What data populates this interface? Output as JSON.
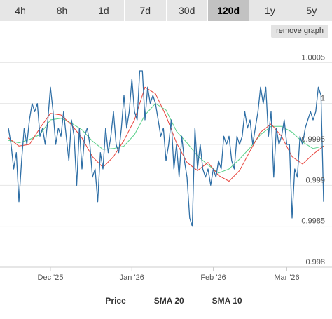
{
  "tabs": [
    {
      "label": "4h"
    },
    {
      "label": "8h"
    },
    {
      "label": "1d"
    },
    {
      "label": "7d"
    },
    {
      "label": "30d"
    },
    {
      "label": "120d",
      "active": true
    },
    {
      "label": "1y"
    },
    {
      "label": "5y"
    }
  ],
  "remove_graph_label": "remove graph",
  "colors": {
    "price": "#2f6fa6",
    "sma20": "#58d089",
    "sma10": "#e8423b"
  },
  "chart_data": {
    "type": "line",
    "title": "",
    "xlabel": "",
    "ylabel": "",
    "ylim": [
      0.998,
      1.0007
    ],
    "y_ticks": [
      {
        "value": 0.998,
        "label": "0.998"
      },
      {
        "value": 0.9985,
        "label": "0.9985"
      },
      {
        "value": 0.999,
        "label": "0.999"
      },
      {
        "value": 0.9995,
        "label": "0.9995"
      },
      {
        "value": 1.0,
        "label": "1"
      },
      {
        "value": 1.0005,
        "label": "1.0005"
      }
    ],
    "x_ticks": [
      {
        "x": 16,
        "label": "Dec '25"
      },
      {
        "x": 47,
        "label": "Jan '26"
      },
      {
        "x": 78,
        "label": "Feb '26"
      },
      {
        "x": 106,
        "label": "Mar '26"
      }
    ],
    "grid": true,
    "legend": "bottom",
    "series": [
      {
        "name": "Price",
        "x": [
          0,
          1,
          2,
          3,
          4,
          5,
          6,
          7,
          8,
          9,
          10,
          11,
          12,
          13,
          14,
          15,
          16,
          17,
          18,
          19,
          20,
          21,
          22,
          23,
          24,
          25,
          26,
          27,
          28,
          29,
          30,
          31,
          32,
          33,
          34,
          35,
          36,
          37,
          38,
          39,
          40,
          41,
          42,
          43,
          44,
          45,
          46,
          47,
          48,
          49,
          50,
          51,
          52,
          53,
          54,
          55,
          56,
          57,
          58,
          59,
          60,
          61,
          62,
          63,
          64,
          65,
          66,
          67,
          68,
          69,
          70,
          71,
          72,
          73,
          74,
          75,
          76,
          77,
          78,
          79,
          80,
          81,
          82,
          83,
          84,
          85,
          86,
          87,
          88,
          89,
          90,
          91,
          92,
          93,
          94,
          95,
          96,
          97,
          98,
          99,
          100,
          101,
          102,
          103,
          104,
          105,
          106,
          107,
          108,
          109,
          110,
          111,
          112,
          113,
          114,
          115,
          116,
          117,
          118,
          119,
          120
        ],
        "values": [
          0.9997,
          0.9995,
          0.9992,
          0.9994,
          0.9988,
          0.9993,
          0.9997,
          0.9995,
          0.9998,
          1.0,
          0.9999,
          1.0,
          0.9996,
          0.9997,
          0.9995,
          0.9998,
          1.0002,
          0.9999,
          0.9995,
          0.9997,
          0.9996,
          0.9999,
          0.9996,
          0.9993,
          0.9998,
          0.9996,
          0.999,
          0.9997,
          0.9992,
          0.9996,
          0.9997,
          0.9995,
          0.9991,
          0.9992,
          0.9988,
          0.9994,
          0.9992,
          0.9997,
          0.9994,
          0.9996,
          0.9999,
          0.9995,
          0.9994,
          0.9997,
          1.0001,
          0.9997,
          0.9999,
          1.0003,
          0.9999,
          0.9998,
          1.0004,
          1.0004,
          0.9998,
          1.0002,
          1.0,
          1.0001,
          1.0,
          0.9998,
          0.9996,
          0.9997,
          0.9993,
          0.9995,
          0.9998,
          0.9992,
          0.9995,
          0.9991,
          0.9996,
          0.9993,
          0.9991,
          0.9986,
          0.9985,
          0.9997,
          0.9992,
          0.9995,
          0.9992,
          0.9991,
          0.9992,
          0.999,
          0.9992,
          0.9991,
          0.9993,
          0.9992,
          0.9996,
          0.9995,
          0.9996,
          0.9993,
          0.9992,
          0.9996,
          0.9995,
          0.9996,
          0.9999,
          0.9997,
          0.9998,
          0.9995,
          0.9997,
          0.9999,
          1.0002,
          1.0,
          1.0002,
          0.9996,
          0.9999,
          0.9991,
          0.9997,
          0.9995,
          0.9996,
          0.9998,
          0.9995,
          0.9995,
          0.9986,
          0.9992,
          0.9991,
          0.9996,
          0.9995,
          0.9997,
          0.9998,
          0.9999,
          0.9998,
          0.9999,
          1.0002,
          1.0001,
          0.9988
        ]
      },
      {
        "name": "SMA 20",
        "x": [
          0,
          4,
          8,
          12,
          16,
          20,
          24,
          28,
          32,
          36,
          40,
          44,
          48,
          52,
          56,
          60,
          64,
          68,
          72,
          76,
          80,
          84,
          88,
          92,
          96,
          100,
          104,
          108,
          112,
          116,
          120
        ],
        "values": [
          0.99955,
          0.99952,
          0.99956,
          0.99962,
          0.9998,
          0.99982,
          0.99976,
          0.99968,
          0.99954,
          0.99944,
          0.99945,
          0.99948,
          0.99962,
          0.99986,
          1.0,
          0.99992,
          0.99966,
          0.99952,
          0.99936,
          0.99925,
          0.99915,
          0.9992,
          0.99932,
          0.99946,
          0.99962,
          0.99972,
          0.99972,
          0.99965,
          0.99953,
          0.99945,
          0.99948
        ]
      },
      {
        "name": "SMA 10",
        "x": [
          0,
          4,
          8,
          12,
          16,
          20,
          24,
          28,
          32,
          36,
          40,
          44,
          48,
          52,
          56,
          60,
          64,
          68,
          72,
          76,
          80,
          84,
          88,
          92,
          96,
          100,
          104,
          108,
          112,
          116,
          120
        ],
        "values": [
          0.99958,
          0.99948,
          0.9995,
          0.9997,
          0.99988,
          0.99986,
          0.99974,
          0.99958,
          0.99935,
          0.99922,
          0.99935,
          0.99955,
          0.9998,
          1.0002,
          1.00012,
          0.99985,
          0.99952,
          0.99928,
          0.99918,
          0.99928,
          0.99912,
          0.99905,
          0.99918,
          0.99942,
          0.99965,
          0.99975,
          0.9996,
          0.99935,
          0.99926,
          0.99938,
          0.99948
        ]
      }
    ]
  }
}
